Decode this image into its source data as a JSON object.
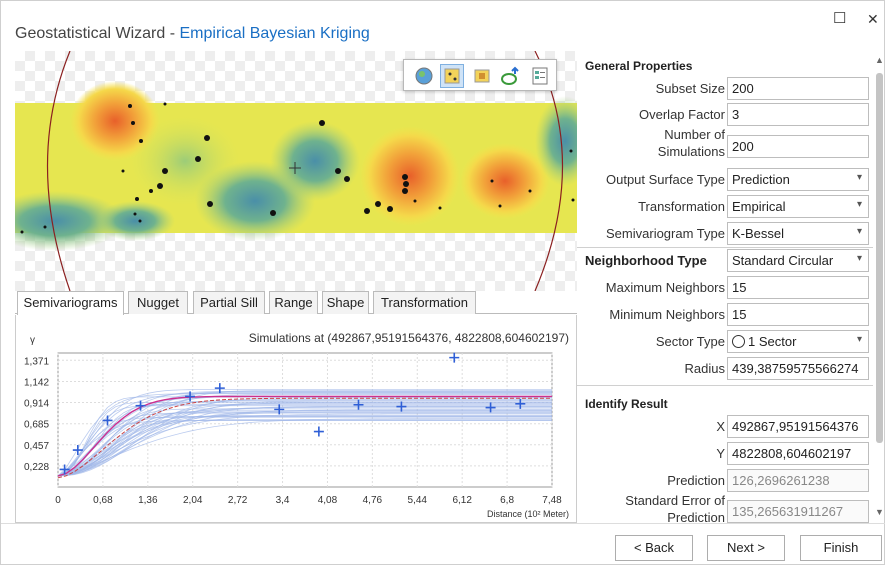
{
  "window": {
    "title_main": "Geostatistical Wizard",
    "title_sep": " - ",
    "title_method": "Empirical Bayesian Kriging",
    "maximize_glyph": "☐",
    "close_glyph": "✕"
  },
  "map_tools": [
    "globe-icon",
    "cells-icon",
    "layers-icon",
    "arrow-icon",
    "legend-icon"
  ],
  "tabs": [
    "Semivariograms",
    "Nugget",
    "Partial Sill",
    "Range",
    "Shape",
    "Transformation"
  ],
  "chart_data": {
    "type": "line",
    "title": "Simulations at (492867,95191564376, 4822808,604602197)",
    "ylabel": "γ",
    "xlabel": "Distance (10² Meter)",
    "x_ticks": [
      "0",
      "0,68",
      "1,36",
      "2,04",
      "2,72",
      "3,4",
      "4,08",
      "4,76",
      "5,44",
      "6,12",
      "6,8",
      "7,48"
    ],
    "y_ticks": [
      "0,228",
      "0,457",
      "0,685",
      "0,914",
      "1,142",
      "1,371"
    ],
    "xlim": [
      0,
      7.48
    ],
    "ylim": [
      0,
      1.45
    ],
    "empirical_points": [
      [
        0.1,
        0.19
      ],
      [
        0.3,
        0.4
      ],
      [
        0.75,
        0.72
      ],
      [
        1.25,
        0.88
      ],
      [
        2.0,
        0.98
      ],
      [
        2.45,
        1.07
      ],
      [
        3.35,
        0.84
      ],
      [
        3.95,
        0.6
      ],
      [
        4.55,
        0.89
      ],
      [
        5.2,
        0.87
      ],
      [
        6.0,
        1.4
      ],
      [
        6.55,
        0.86
      ],
      [
        7.0,
        0.9
      ]
    ],
    "colors": {
      "simulations": "#9fb6e8",
      "median": "#cc2f8f",
      "quantile": "#c44",
      "points": "#2f5fd6"
    }
  },
  "props": {
    "general_header": "General Properties",
    "subset_size_label": "Subset Size",
    "subset_size": "200",
    "overlap_label": "Overlap Factor",
    "overlap": "3",
    "num_sim_label_1": "Number of",
    "num_sim_label_2": "Simulations",
    "num_sim": "200",
    "output_type_label": "Output Surface Type",
    "output_type": "Prediction",
    "transformation_label": "Transformation",
    "transformation": "Empirical",
    "semivariogram_label": "Semivariogram Type",
    "semivariogram": "K-Bessel",
    "neighborhood_label": "Neighborhood Type",
    "neighborhood": "Standard Circular",
    "max_neighbors_label": "Maximum Neighbors",
    "max_neighbors": "15",
    "min_neighbors_label": "Minimum Neighbors",
    "min_neighbors": "15",
    "sector_label": "Sector Type",
    "sector": "1 Sector",
    "radius_label": "Radius",
    "radius": "439,38759575566274",
    "identify_header": "Identify Result",
    "x_label": "X",
    "x": "492867,95191564376",
    "y_label": "Y",
    "y": "4822808,604602197",
    "prediction_label": "Prediction",
    "prediction": "126,2696261238",
    "se_label_1": "Standard Error of",
    "se_label_2": "Prediction",
    "se": "135,265631911267"
  },
  "buttons": {
    "back": "< Back",
    "next": "Next >",
    "finish": "Finish"
  }
}
